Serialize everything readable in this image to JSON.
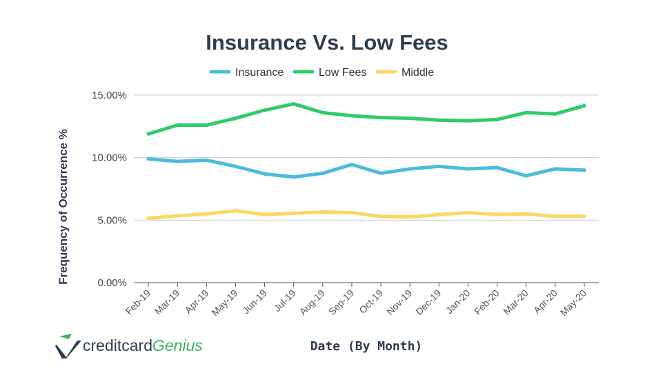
{
  "chart_data": {
    "type": "line",
    "title": "Insurance Vs. Low Fees",
    "xlabel": "Date (By Month)",
    "ylabel": "Frequency of Occurrence  %",
    "ylim": [
      0,
      15
    ],
    "yticks": [
      0,
      5,
      10,
      15
    ],
    "ytick_labels": [
      "0.00%",
      "5.00%",
      "10.00%",
      "15.00%"
    ],
    "grid": true,
    "legend_position": "top-center",
    "categories": [
      "Feb-19",
      "Mar-19",
      "Apr-19",
      "May-19",
      "Jun-19",
      "Jul-19",
      "Aug-19",
      "Sep-19",
      "Oct-19",
      "Nov-19",
      "Dec-19",
      "Jan-20",
      "Feb-20",
      "Mar-20",
      "Apr-20",
      "May-20"
    ],
    "series": [
      {
        "name": "Insurance",
        "color": "#4bbcdc",
        "values": [
          9.9,
          9.7,
          9.8,
          9.3,
          8.7,
          8.45,
          8.75,
          9.45,
          8.75,
          9.1,
          9.3,
          9.1,
          9.2,
          8.55,
          9.1,
          9.0
        ]
      },
      {
        "name": "Low Fees",
        "color": "#2ecc6a",
        "values": [
          11.9,
          12.6,
          12.6,
          13.15,
          13.8,
          14.3,
          13.6,
          13.35,
          13.2,
          13.15,
          13.0,
          12.95,
          13.05,
          13.6,
          13.5,
          14.15
        ]
      },
      {
        "name": "Middle",
        "color": "#fcd667",
        "values": [
          5.15,
          5.35,
          5.5,
          5.75,
          5.45,
          5.55,
          5.65,
          5.6,
          5.3,
          5.25,
          5.45,
          5.6,
          5.45,
          5.5,
          5.3,
          5.3
        ]
      }
    ]
  },
  "logo": {
    "name_part1": "creditcard",
    "name_part2": "Genius",
    "icon": "checkmark-logo-icon"
  }
}
